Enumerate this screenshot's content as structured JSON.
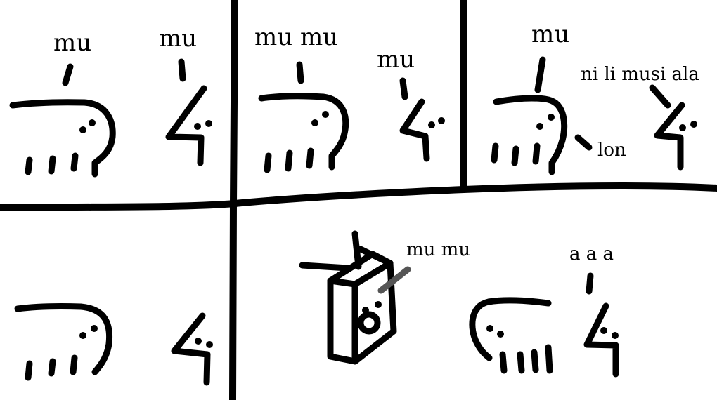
{
  "panels": {
    "p1": {
      "speech_left": "mu",
      "speech_right": "mu"
    },
    "p2": {
      "speech_left": "mu mu",
      "speech_right": "mu"
    },
    "p3": {
      "speech_left": "mu",
      "speech_right": "ni li musi ala",
      "speech_aside": "lon"
    },
    "p4": {},
    "p5": {
      "speech_device": "mu mu",
      "speech_right": "a a a"
    }
  }
}
